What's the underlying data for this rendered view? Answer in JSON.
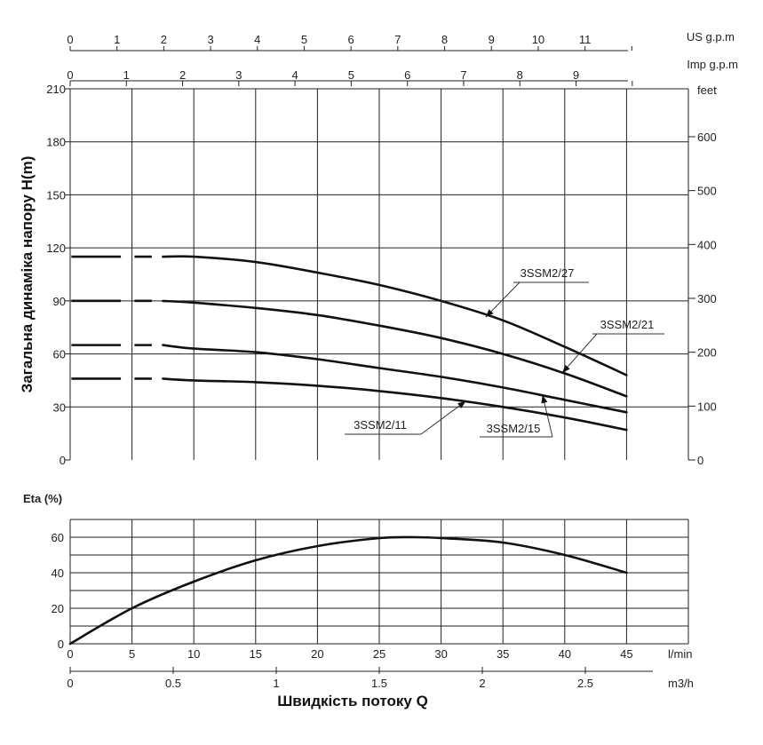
{
  "chart_data": [
    {
      "type": "line",
      "name": "head-chart",
      "ylabel": "Загальна динаміка напору H(m)",
      "ylim": [
        0,
        210
      ],
      "y_ticks": [
        0,
        30,
        60,
        90,
        120,
        150,
        180,
        210
      ],
      "y2_unit": "feet",
      "y2_ticks": [
        0,
        100,
        200,
        300,
        400,
        500,
        600
      ],
      "top_axis_1_unit": "US g.p.m",
      "top_axis_1_ticks": [
        "0",
        "1",
        "2",
        "3",
        "4",
        "5",
        "6",
        "7",
        "8",
        "9",
        "10",
        "11"
      ],
      "top_axis_2_unit": "Imp g.p.m",
      "top_axis_2_ticks": [
        "0",
        "1",
        "2",
        "3",
        "4",
        "5",
        "6",
        "7",
        "8",
        "9"
      ],
      "xlim_lmin": [
        0,
        50
      ],
      "grid": true,
      "series": [
        {
          "name": "3SSM2/27",
          "x": [
            0,
            10,
            15,
            20,
            25,
            30,
            35,
            40,
            45
          ],
          "y": [
            115,
            115,
            112,
            106,
            99,
            90,
            79,
            64,
            48
          ],
          "dashed_until": 7.5
        },
        {
          "name": "3SSM2/21",
          "x": [
            0,
            10,
            15,
            20,
            25,
            30,
            35,
            40,
            45
          ],
          "y": [
            90,
            89,
            86,
            82,
            76,
            69,
            60,
            49,
            36
          ],
          "dashed_until": 7.5
        },
        {
          "name": "3SSM2/15",
          "x": [
            0,
            10,
            15,
            20,
            25,
            30,
            35,
            40,
            45
          ],
          "y": [
            65,
            63,
            61,
            57,
            52,
            47,
            41,
            34,
            27
          ],
          "dashed_until": 7.5
        },
        {
          "name": "3SSM2/11",
          "x": [
            0,
            10,
            15,
            20,
            25,
            30,
            35,
            40,
            45
          ],
          "y": [
            46,
            45,
            44,
            42,
            39,
            35,
            30,
            24,
            17
          ],
          "dashed_until": 7.5
        }
      ]
    },
    {
      "type": "line",
      "name": "efficiency-chart",
      "ylabel": "Eta (%)",
      "ylim": [
        0,
        60
      ],
      "y_ticks": [
        0,
        20,
        40,
        60
      ],
      "x_unit": "l/min",
      "x_ticks": [
        0,
        5,
        10,
        15,
        20,
        25,
        30,
        35,
        40,
        45
      ],
      "x2_unit": "m3/h",
      "x2_ticks": [
        "0",
        "0.5",
        "1",
        "1.5",
        "2",
        "2.5"
      ],
      "xlabel": "Швидкість потоку Q",
      "grid": true,
      "series": [
        {
          "name": "",
          "x": [
            0,
            5,
            10,
            15,
            20,
            25,
            28,
            30,
            35,
            40,
            45
          ],
          "y": [
            0,
            20,
            35,
            47,
            55,
            59.5,
            60,
            59.5,
            57,
            50,
            40
          ]
        }
      ]
    }
  ],
  "curve_labels": [
    "3SSM2/27",
    "3SSM2/21",
    "3SSM2/15",
    "3SSM2/11"
  ]
}
